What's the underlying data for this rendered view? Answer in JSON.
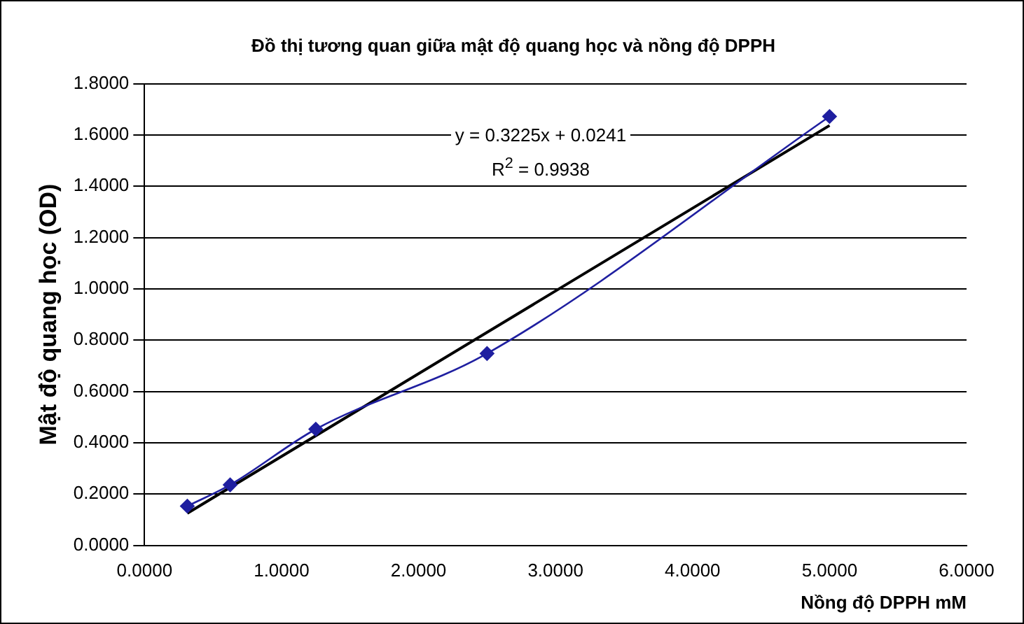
{
  "chart_data": {
    "type": "line",
    "title": "Đồ thị tương quan giữa mật độ quang học và nồng độ DPPH",
    "xlabel": "Nồng độ DPPH mM",
    "ylabel": "Mật độ quang học (OD)",
    "annotations": [
      "y = 0.3225x + 0.0241",
      "R$^{2}$ = 0.9938"
    ],
    "series": [
      {
        "type": "line",
        "color": "#1f1fa0",
        "x": [
          0.3125,
          0.625,
          1.25,
          2.5,
          5
        ],
        "values": [
          0.153,
          0.236,
          0.453,
          0.748,
          1.672
        ],
        "marker": "diamond"
      },
      {
        "type": "line",
        "color": "#000000",
        "x": [
          0.3125,
          5
        ],
        "values": [
          0.125,
          1.637
        ],
        "marker": "none"
      }
    ],
    "xlim": [
      0,
      6
    ],
    "xticks": [
      {
        "value": 0,
        "label": "0.0000"
      },
      {
        "value": 1,
        "label": "1.0000"
      },
      {
        "value": 2,
        "label": "2.0000"
      },
      {
        "value": 3,
        "label": "3.0000"
      },
      {
        "value": 4,
        "label": "4.0000"
      },
      {
        "value": 5,
        "label": "5.0000"
      },
      {
        "value": 6,
        "label": "6.0000"
      }
    ],
    "ylim": [
      0,
      1.8
    ],
    "yticks": [
      {
        "value": 0,
        "label": "0.0000"
      },
      {
        "value": 0.2,
        "label": "0.2000"
      },
      {
        "value": 0.4,
        "label": "0.4000"
      },
      {
        "value": 0.6,
        "label": "0.6000"
      },
      {
        "value": 0.8,
        "label": "0.8000"
      },
      {
        "value": 1,
        "label": "1.0000"
      },
      {
        "value": 1.2,
        "label": "1.2000"
      },
      {
        "value": 1.4,
        "label": "1.4000"
      },
      {
        "value": 1.6,
        "label": "1.6000"
      },
      {
        "value": 1.8,
        "label": "1.8000"
      }
    ],
    "grid": "y",
    "legend": false
  }
}
